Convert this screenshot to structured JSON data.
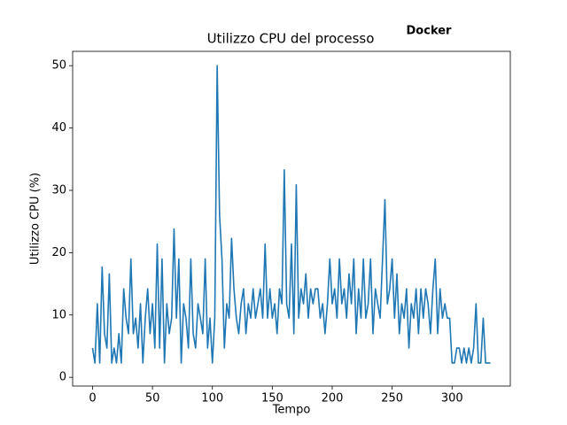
{
  "chart_data": {
    "type": "line",
    "title": "Utilizzo CPU del processo",
    "annotation": "Docker",
    "xlabel": "Tempo",
    "ylabel": "Utilizzo CPU (%)",
    "color": "#1f77b4",
    "x": [
      0,
      2,
      4,
      6,
      8,
      10,
      12,
      14,
      16,
      18,
      20,
      22,
      24,
      26,
      28,
      30,
      32,
      34,
      36,
      38,
      40,
      42,
      44,
      46,
      48,
      50,
      52,
      54,
      56,
      58,
      60,
      62,
      64,
      66,
      68,
      70,
      72,
      74,
      76,
      78,
      80,
      82,
      84,
      86,
      88,
      90,
      92,
      94,
      96,
      98,
      100,
      102,
      104,
      106,
      108,
      110,
      112,
      114,
      116,
      118,
      120,
      122,
      124,
      126,
      128,
      130,
      132,
      134,
      136,
      138,
      140,
      142,
      144,
      146,
      148,
      150,
      152,
      154,
      156,
      158,
      160,
      162,
      164,
      166,
      168,
      170,
      172,
      174,
      176,
      178,
      180,
      182,
      184,
      186,
      188,
      190,
      192,
      194,
      196,
      198,
      200,
      202,
      204,
      206,
      208,
      210,
      212,
      214,
      216,
      218,
      220,
      222,
      224,
      226,
      228,
      230,
      232,
      234,
      236,
      238,
      240,
      242,
      244,
      246,
      248,
      250,
      252,
      254,
      256,
      258,
      260,
      262,
      264,
      266,
      268,
      270,
      272,
      274,
      276,
      278,
      280,
      282,
      284,
      286,
      288,
      290,
      292,
      294,
      296,
      298,
      300,
      302,
      304,
      306,
      308,
      310,
      312,
      314,
      316,
      318,
      320,
      322,
      324,
      326,
      328,
      330,
      332
    ],
    "values": [
      4.7,
      2.3,
      11.8,
      2.3,
      17.7,
      7,
      4.7,
      16.6,
      2.3,
      4.7,
      2.3,
      7,
      2.3,
      14.2,
      9.5,
      7,
      19,
      7,
      9.5,
      4.7,
      11.8,
      2.3,
      9.5,
      14.2,
      7,
      11.8,
      4.7,
      21.4,
      4.7,
      19,
      2.3,
      11.8,
      7,
      9.5,
      23.8,
      9.5,
      19,
      2.3,
      11.8,
      9.5,
      4.7,
      19,
      7,
      4.7,
      11.8,
      9.5,
      7,
      19,
      4.7,
      9.5,
      2.3,
      9.5,
      50,
      26,
      19,
      4.7,
      11.8,
      9.5,
      22.3,
      14.2,
      9.5,
      7,
      11.8,
      14.2,
      7,
      11.8,
      9.5,
      14.2,
      9.5,
      11.8,
      14.2,
      9.5,
      21.4,
      9.5,
      14.2,
      9.5,
      11.8,
      7,
      14.2,
      11.8,
      33.3,
      11.8,
      9.5,
      21.4,
      7,
      30.9,
      9.5,
      14.2,
      11.8,
      16.6,
      9.5,
      14.2,
      11.8,
      14.2,
      14.2,
      9.5,
      11.8,
      7,
      11.8,
      19,
      11.8,
      14.2,
      9.5,
      19,
      11.8,
      14.2,
      9.5,
      16.6,
      11.8,
      19,
      7,
      14.2,
      9.5,
      19,
      9.5,
      11.8,
      19,
      7,
      14.2,
      11.8,
      9.5,
      19,
      28.5,
      11.8,
      14.2,
      19,
      9.5,
      16.6,
      7,
      11.8,
      9.5,
      14.2,
      4.7,
      11.8,
      9.5,
      14.2,
      7,
      14.2,
      9.5,
      14.2,
      11.8,
      7,
      14.2,
      19,
      7,
      14.2,
      9.5,
      11.8,
      9.5,
      9.5,
      2.3,
      2.3,
      4.7,
      4.7,
      2.3,
      4.7,
      2.3,
      4.7,
      2.3,
      4.7,
      11.8,
      2.3,
      2.3,
      9.5,
      2.3,
      2.3,
      2.3
    ],
    "xlim": [
      -16.6,
      348.6
    ],
    "ylim": [
      -1.4,
      52.3
    ],
    "xticks": [
      0,
      50,
      100,
      150,
      200,
      250,
      300
    ],
    "yticks": [
      0,
      10,
      20,
      30,
      40,
      50
    ]
  }
}
